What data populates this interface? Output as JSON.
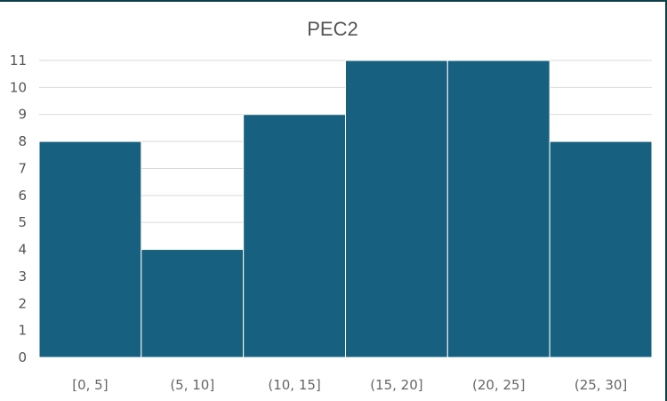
{
  "chart_data": {
    "type": "bar",
    "title": "PEC2",
    "categories": [
      "[0, 5]",
      "(5, 10]",
      "(10, 15]",
      "(15, 20]",
      "(20, 25]",
      "(25, 30]"
    ],
    "values": [
      8,
      4,
      9,
      11,
      11,
      8
    ],
    "xlabel": "",
    "ylabel": "",
    "ylim": [
      0,
      11
    ],
    "yticks": [
      0,
      1,
      2,
      3,
      4,
      5,
      6,
      7,
      8,
      9,
      10,
      11
    ],
    "grid": true,
    "legend": "none",
    "bar_color": "#17607f",
    "bar_gap": 0
  }
}
